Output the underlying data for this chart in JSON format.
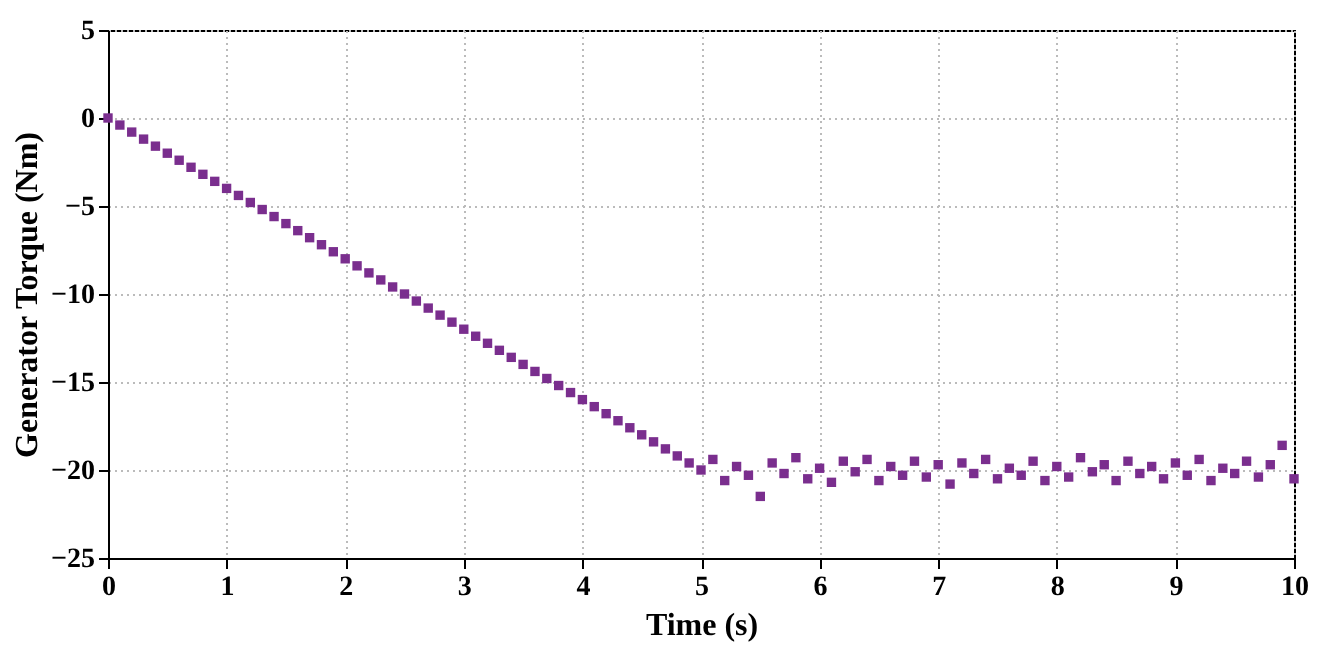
{
  "chart_data": {
    "type": "scatter",
    "xlabel": "Time (s)",
    "ylabel": "Generator Torque (Nm)",
    "x": [
      0,
      0.1,
      0.2,
      0.3,
      0.4,
      0.5,
      0.6,
      0.7,
      0.8,
      0.9,
      1,
      1.1,
      1.2,
      1.3,
      1.4,
      1.5,
      1.6,
      1.7,
      1.8,
      1.9,
      2,
      2.1,
      2.2,
      2.3,
      2.4,
      2.5,
      2.6,
      2.7,
      2.8,
      2.9,
      3,
      3.1,
      3.2,
      3.3,
      3.4,
      3.5,
      3.6,
      3.7,
      3.8,
      3.9,
      4,
      4.1,
      4.2,
      4.3,
      4.4,
      4.5,
      4.6,
      4.7,
      4.8,
      4.9,
      5,
      5.1,
      5.2,
      5.3,
      5.4,
      5.5,
      5.6,
      5.7,
      5.8,
      5.9,
      6,
      6.1,
      6.2,
      6.3,
      6.4,
      6.5,
      6.6,
      6.7,
      6.8,
      6.9,
      7,
      7.1,
      7.2,
      7.3,
      7.4,
      7.5,
      7.6,
      7.7,
      7.8,
      7.9,
      8,
      8.1,
      8.2,
      8.3,
      8.4,
      8.5,
      8.6,
      8.7,
      8.8,
      8.9,
      9,
      9.1,
      9.2,
      9.3,
      9.4,
      9.5,
      9.6,
      9.7,
      9.8,
      9.9,
      10
    ],
    "series": [
      {
        "color": "#7a2e8e",
        "values": [
          0,
          -0.4,
          -0.8,
          -1.2,
          -1.6,
          -2,
          -2.4,
          -2.8,
          -3.2,
          -3.6,
          -4,
          -4.4,
          -4.8,
          -5.2,
          -5.6,
          -6,
          -6.4,
          -6.8,
          -7.2,
          -7.6,
          -8,
          -8.4,
          -8.8,
          -9.2,
          -9.6,
          -10,
          -10.4,
          -10.8,
          -11.2,
          -11.6,
          -12,
          -12.4,
          -12.8,
          -13.2,
          -13.6,
          -14,
          -14.4,
          -14.8,
          -15.2,
          -15.6,
          -16,
          -16.4,
          -16.8,
          -17.2,
          -17.6,
          -18,
          -18.4,
          -18.8,
          -19.2,
          -19.6,
          -20,
          -19.4,
          -20.6,
          -19.8,
          -20.3,
          -21.5,
          -19.6,
          -20.2,
          -19.3,
          -20.5,
          -19.9,
          -20.7,
          -19.5,
          -20.1,
          -19.4,
          -20.6,
          -19.8,
          -20.3,
          -19.5,
          -20.4,
          -19.7,
          -20.8,
          -19.6,
          -20.2,
          -19.4,
          -20.5,
          -19.9,
          -20.3,
          -19.5,
          -20.6,
          -19.8,
          -20.4,
          -19.3,
          -20.1,
          -19.7,
          -20.6,
          -19.5,
          -20.2,
          -19.8,
          -20.5,
          -19.6,
          -20.3,
          -19.4,
          -20.6,
          -19.9,
          -20.2,
          -19.5,
          -20.4,
          -19.7,
          -18.6,
          -20.5
        ]
      }
    ],
    "xlim": [
      0,
      10
    ],
    "xticks": [
      0,
      1,
      2,
      3,
      4,
      5,
      6,
      7,
      8,
      9,
      10
    ],
    "ylim": [
      -25,
      5
    ],
    "yticks": [
      -25,
      -20,
      -15,
      -10,
      -5,
      0,
      5
    ],
    "grid": true,
    "marker": "square"
  }
}
